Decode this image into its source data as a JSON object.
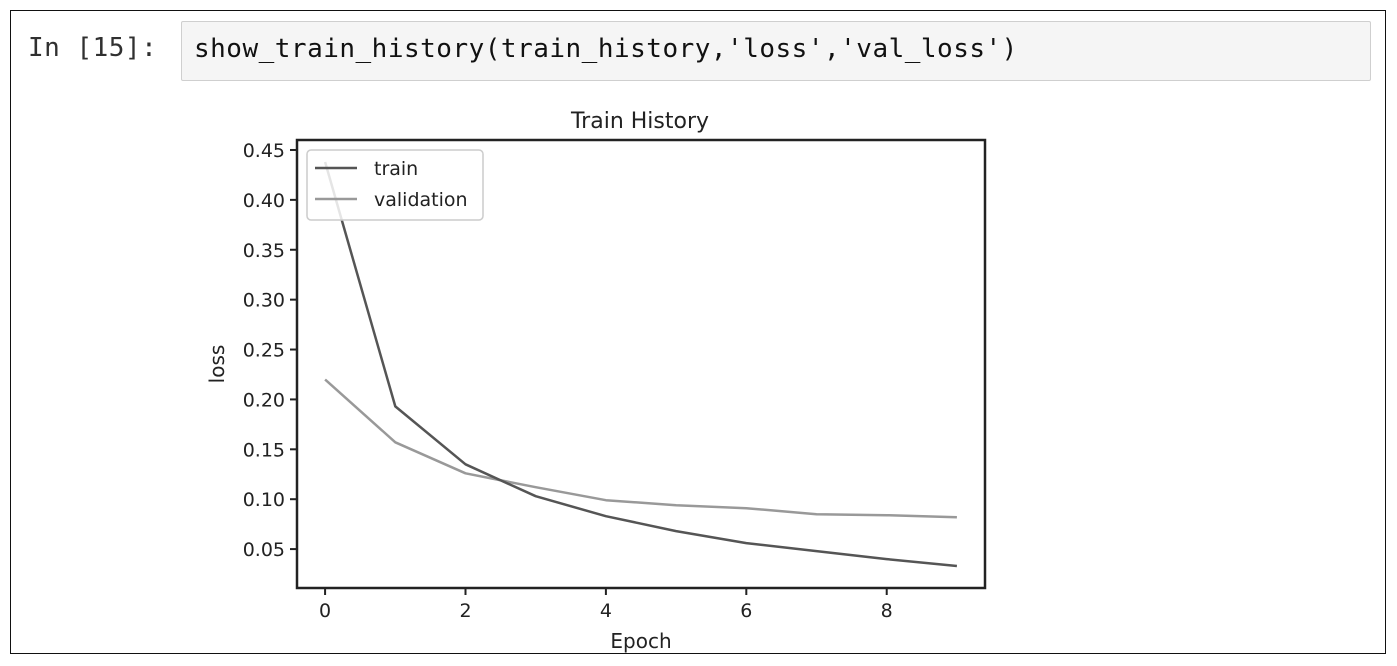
{
  "notebook": {
    "prompt": "In [15]:",
    "code": "show_train_history(train_history,'loss','val_loss')"
  },
  "chart_data": {
    "type": "line",
    "title": "Train History",
    "xlabel": "Epoch",
    "ylabel": "loss",
    "x": [
      0,
      1,
      2,
      3,
      4,
      5,
      6,
      7,
      8,
      9
    ],
    "xlim": [
      -0.4,
      9.4
    ],
    "ylim": [
      0.011,
      0.46
    ],
    "xticks": [
      0,
      2,
      4,
      6,
      8
    ],
    "yticks": [
      0.05,
      0.1,
      0.15,
      0.2,
      0.25,
      0.3,
      0.35,
      0.4,
      0.45
    ],
    "ytick_labels": [
      "0.05",
      "0.10",
      "0.15",
      "0.20",
      "0.25",
      "0.30",
      "0.35",
      "0.40",
      "0.45"
    ],
    "xtick_labels": [
      "0",
      "2",
      "4",
      "6",
      "8"
    ],
    "legend_position": "upper left",
    "series": [
      {
        "name": "train",
        "color": "#555555",
        "values": [
          0.438,
          0.193,
          0.135,
          0.103,
          0.083,
          0.068,
          0.056,
          0.048,
          0.04,
          0.033
        ]
      },
      {
        "name": "validation",
        "color": "#999999",
        "values": [
          0.22,
          0.157,
          0.126,
          0.112,
          0.099,
          0.094,
          0.091,
          0.085,
          0.084,
          0.082
        ]
      }
    ]
  }
}
